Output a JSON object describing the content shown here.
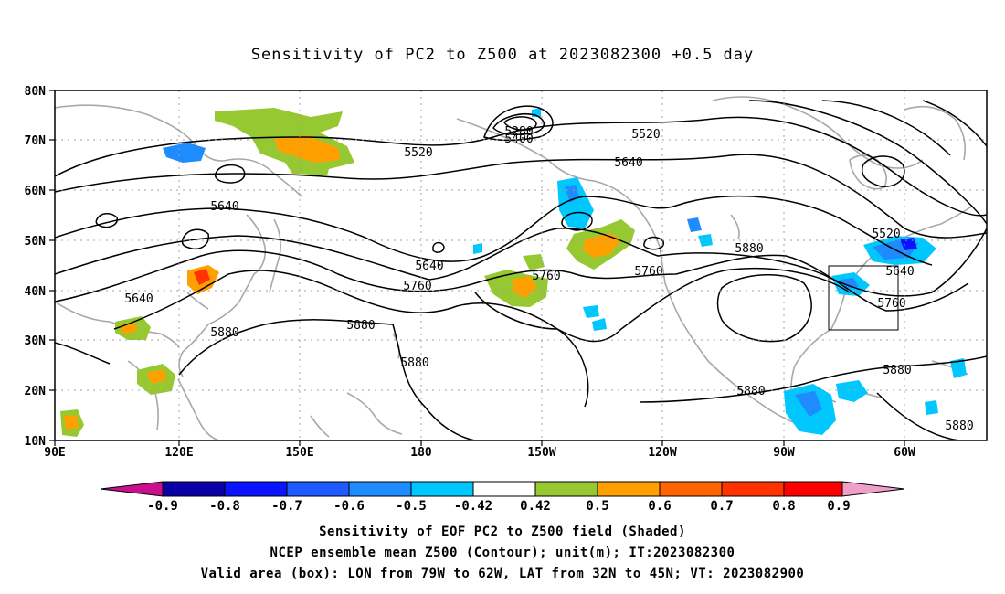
{
  "title": "Sensitivity of PC2 to Z500 at 2023082300 +0.5 day",
  "axes": {
    "lon_labels": [
      "90E",
      "120E",
      "150E",
      "180",
      "150W",
      "120W",
      "90W",
      "60W"
    ],
    "lat_labels": [
      "10N",
      "20N",
      "30N",
      "40N",
      "50N",
      "60N",
      "70N",
      "80N"
    ]
  },
  "contour_labels": [
    "5280",
    "5400",
    "5520",
    "5520",
    "5520",
    "5640",
    "5640",
    "5640",
    "5640",
    "5640",
    "5760",
    "5760",
    "5760",
    "5760",
    "5880",
    "5880",
    "5880",
    "5880",
    "5880",
    "5880",
    "5880"
  ],
  "colorbar": {
    "tick_labels": [
      "-0.9",
      "-0.8",
      "-0.7",
      "-0.6",
      "-0.5",
      "-0.42",
      "0.42",
      "0.5",
      "0.6",
      "0.7",
      "0.8",
      "0.9"
    ],
    "colors": [
      "#0a00a8",
      "#0a14ff",
      "#1e5aff",
      "#1e8cff",
      "#00c8ff",
      "#ffffff",
      "#96c832",
      "#ffa000",
      "#ff6400",
      "#ff3200",
      "#ff0000"
    ],
    "low_end_color": "#c8108c",
    "high_end_color": "#f0a0c8"
  },
  "captions": {
    "line1": "Sensitivity of EOF PC2 to Z500 field (Shaded)",
    "line2": "NCEP ensemble mean Z500 (Contour); unit(m); IT:2023082300",
    "line3": "Valid area (box): LON from 79W to 62W, LAT from 32N to 45N; VT: 2023082900"
  },
  "colors": {
    "coastline": "#a8a8a8",
    "contour": "#000000",
    "grid": "#a0a0a0"
  }
}
